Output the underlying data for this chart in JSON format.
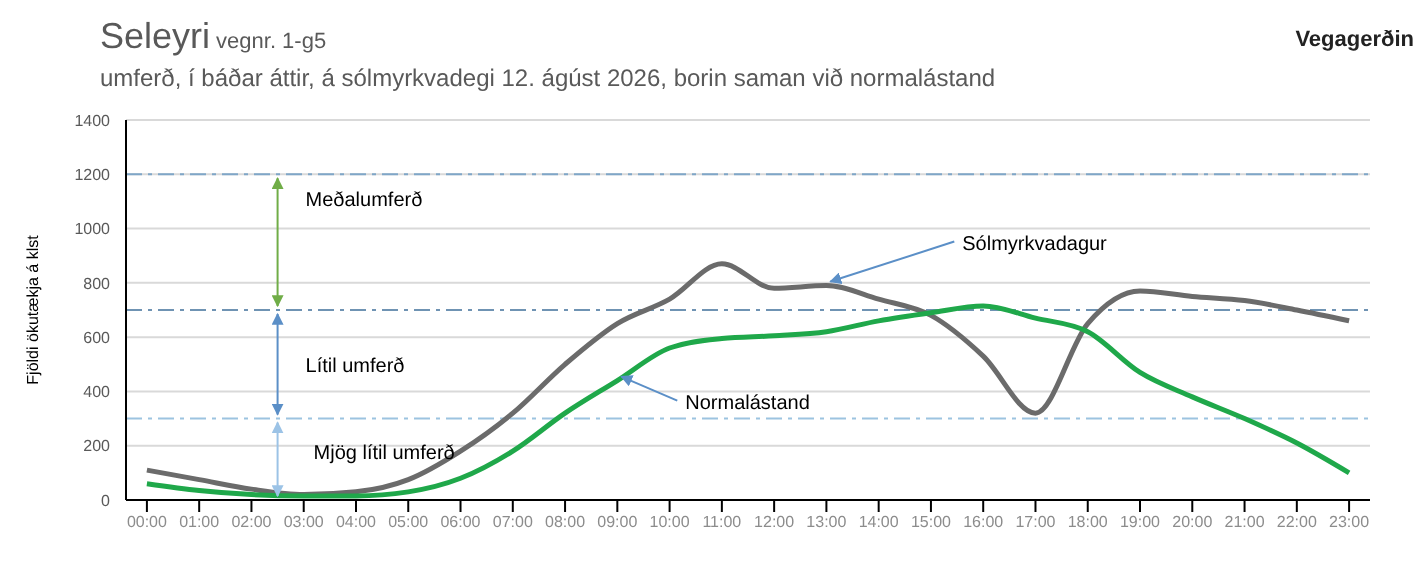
{
  "chart_data": {
    "type": "line",
    "title": "Seleyri",
    "subtitle": "umferð, í báðar áttir, á sólmyrkvadegi 12. ágúst 2026, borin saman við normalástand",
    "ylabel": "Fjöldi ökutækja á klst",
    "annotations": [
      "vegnr. 1-g5",
      "Vegagerðin",
      "Meðalumferð",
      "Lítil umferð",
      "Mjög lítil umferð"
    ],
    "categories": [
      "00:00",
      "01:00",
      "02:00",
      "03:00",
      "04:00",
      "05:00",
      "06:00",
      "07:00",
      "08:00",
      "09:00",
      "10:00",
      "11:00",
      "12:00",
      "13:00",
      "14:00",
      "15:00",
      "16:00",
      "17:00",
      "18:00",
      "19:00",
      "20:00",
      "21:00",
      "22:00",
      "23:00"
    ],
    "series": [
      {
        "name": "Sólmyrkvadagur",
        "color": "#6b6b6b",
        "values": [
          110,
          75,
          40,
          20,
          30,
          75,
          180,
          320,
          500,
          650,
          740,
          870,
          780,
          790,
          740,
          680,
          530,
          320,
          650,
          770,
          750,
          735,
          700,
          660
        ]
      },
      {
        "name": "Normalástand",
        "color": "#1fa84a",
        "values": [
          60,
          35,
          20,
          15,
          15,
          30,
          80,
          180,
          320,
          440,
          560,
          595,
          605,
          620,
          660,
          690,
          715,
          670,
          620,
          470,
          380,
          300,
          210,
          100
        ]
      }
    ],
    "ylim": [
      0,
      1400
    ],
    "yticks": [
      0,
      200,
      400,
      600,
      800,
      1000,
      1200,
      1400
    ],
    "grid": "y",
    "marker": "none",
    "line_style": "solid",
    "ref_lines": [
      {
        "axis": "y",
        "value": 1200,
        "color": "#7fa6c8",
        "line_style": "dashdot"
      },
      {
        "axis": "y",
        "value": 700,
        "color": "#6f93b3",
        "line_style": "dashdot"
      },
      {
        "axis": "y",
        "value": 300,
        "color": "#9cc3e0",
        "line_style": "dashdot"
      }
    ]
  }
}
